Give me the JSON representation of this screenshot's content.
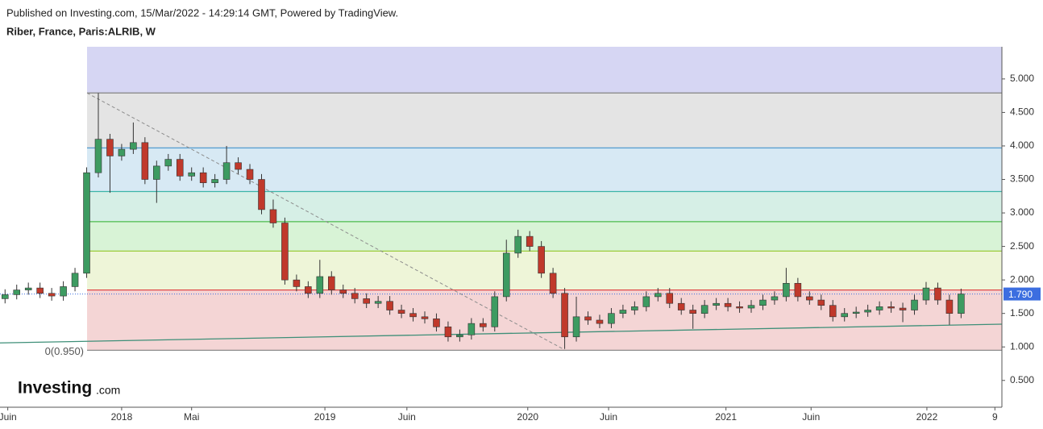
{
  "header": {
    "published": "Published on Investing.com, 15/Mar/2022 - 14:29:14 GMT, Powered by TradingView.",
    "symbol": "Riber, France, Paris:ALRIB, W"
  },
  "logo": {
    "name": "Investing",
    "suffix": ".com"
  },
  "chart_data": {
    "type": "candlestick",
    "x": [
      -30,
      -27,
      -24,
      -21,
      -18,
      -15,
      -12,
      -9,
      -6,
      -3,
      0,
      3,
      6,
      9,
      12,
      15,
      18,
      21,
      24,
      27,
      30,
      33,
      36,
      39,
      42,
      45,
      48,
      51,
      54,
      57,
      60,
      63,
      66,
      69,
      72,
      75,
      78,
      81,
      84,
      87,
      90,
      93,
      96,
      99,
      102,
      105,
      108,
      111,
      114,
      117,
      120,
      123,
      126,
      129,
      132,
      135,
      138,
      141,
      144,
      147,
      150,
      153,
      156,
      159,
      162,
      165,
      168,
      171,
      174,
      177,
      180,
      183,
      186,
      189,
      192,
      195,
      198,
      201,
      204,
      207,
      210,
      213,
      216
    ],
    "open": [
      1.72,
      1.78,
      1.85,
      1.88,
      1.8,
      1.76,
      1.9,
      2.1,
      3.6,
      4.1,
      3.85,
      3.95,
      4.05,
      3.5,
      3.7,
      3.8,
      3.55,
      3.6,
      3.45,
      3.5,
      3.75,
      3.65,
      3.5,
      3.05,
      2.85,
      2.0,
      1.9,
      1.8,
      2.05,
      1.85,
      1.8,
      1.72,
      1.65,
      1.68,
      1.55,
      1.5,
      1.45,
      1.42,
      1.3,
      1.15,
      1.18,
      1.35,
      1.3,
      1.75,
      2.4,
      2.65,
      2.5,
      2.1,
      1.8,
      1.15,
      1.45,
      1.4,
      1.35,
      1.5,
      1.55,
      1.6,
      1.75,
      1.8,
      1.65,
      1.55,
      1.5,
      1.62,
      1.65,
      1.6,
      1.58,
      1.62,
      1.7,
      1.75,
      1.95,
      1.75,
      1.7,
      1.62,
      1.45,
      1.5,
      1.52,
      1.55,
      1.6,
      1.58,
      1.55,
      1.7,
      1.88,
      1.7,
      1.5
    ],
    "high": [
      1.86,
      1.93,
      1.96,
      1.96,
      1.88,
      1.98,
      2.18,
      3.68,
      4.79,
      4.18,
      4.03,
      4.35,
      4.13,
      3.78,
      3.88,
      3.88,
      3.68,
      3.68,
      3.58,
      4.0,
      3.83,
      3.73,
      3.58,
      3.2,
      2.93,
      2.08,
      1.98,
      2.3,
      2.13,
      1.93,
      1.88,
      1.8,
      1.76,
      1.76,
      1.63,
      1.58,
      1.53,
      1.5,
      1.38,
      1.26,
      1.43,
      1.43,
      1.83,
      2.6,
      2.75,
      2.73,
      2.58,
      2.18,
      1.88,
      1.75,
      1.53,
      1.48,
      1.58,
      1.63,
      1.68,
      1.83,
      1.88,
      1.88,
      1.73,
      1.63,
      1.7,
      1.73,
      1.73,
      1.68,
      1.7,
      1.78,
      1.83,
      2.18,
      2.03,
      1.83,
      1.78,
      1.7,
      1.58,
      1.6,
      1.63,
      1.68,
      1.68,
      1.66,
      1.78,
      1.97,
      1.96,
      1.78,
      1.87
    ],
    "low": [
      1.65,
      1.71,
      1.78,
      1.73,
      1.69,
      1.69,
      1.83,
      2.03,
      3.53,
      3.3,
      3.78,
      3.88,
      3.43,
      3.15,
      3.63,
      3.48,
      3.48,
      3.38,
      3.38,
      3.43,
      3.58,
      3.43,
      2.98,
      2.78,
      1.93,
      1.83,
      1.73,
      1.73,
      1.78,
      1.73,
      1.65,
      1.58,
      1.58,
      1.48,
      1.43,
      1.38,
      1.35,
      1.23,
      1.08,
      1.08,
      1.11,
      1.23,
      1.23,
      1.68,
      2.33,
      2.43,
      2.03,
      1.73,
      0.97,
      1.08,
      1.33,
      1.28,
      1.28,
      1.43,
      1.48,
      1.53,
      1.68,
      1.58,
      1.48,
      1.27,
      1.43,
      1.55,
      1.53,
      1.51,
      1.51,
      1.55,
      1.63,
      1.68,
      1.68,
      1.63,
      1.55,
      1.38,
      1.38,
      1.43,
      1.45,
      1.48,
      1.51,
      1.37,
      1.48,
      1.63,
      1.63,
      1.33,
      1.43
    ],
    "close": [
      1.78,
      1.85,
      1.88,
      1.8,
      1.76,
      1.9,
      2.1,
      3.6,
      4.1,
      3.85,
      3.95,
      4.05,
      3.5,
      3.7,
      3.8,
      3.55,
      3.6,
      3.45,
      3.5,
      3.75,
      3.65,
      3.5,
      3.05,
      2.85,
      2.0,
      1.9,
      1.8,
      2.05,
      1.85,
      1.8,
      1.72,
      1.65,
      1.68,
      1.55,
      1.5,
      1.45,
      1.42,
      1.3,
      1.15,
      1.18,
      1.35,
      1.3,
      1.75,
      2.4,
      2.65,
      2.5,
      2.1,
      1.8,
      1.15,
      1.45,
      1.4,
      1.35,
      1.5,
      1.55,
      1.6,
      1.75,
      1.8,
      1.65,
      1.55,
      1.5,
      1.62,
      1.65,
      1.6,
      1.58,
      1.62,
      1.7,
      1.75,
      1.95,
      1.75,
      1.7,
      1.62,
      1.45,
      1.5,
      1.52,
      1.55,
      1.6,
      1.58,
      1.55,
      1.7,
      1.88,
      1.7,
      1.5,
      1.79
    ],
    "up_color": "#3d9b61",
    "down_color": "#c0392b",
    "xlim": [
      -31.3,
      226.5
    ],
    "xticks": [
      {
        "value": -29.3,
        "label": "Juin"
      },
      {
        "value": 0,
        "label": "2018"
      },
      {
        "value": 18,
        "label": "Mai"
      },
      {
        "value": 52.3,
        "label": "2019"
      },
      {
        "value": 73.4,
        "label": "Juin"
      },
      {
        "value": 104.5,
        "label": "2020"
      },
      {
        "value": 125.3,
        "label": "Juin"
      },
      {
        "value": 155.5,
        "label": "2021"
      },
      {
        "value": 177.4,
        "label": "Juin"
      },
      {
        "value": 207.2,
        "label": "2022"
      },
      {
        "value": 224.7,
        "label": "9"
      }
    ],
    "ylim": [
      0.1,
      5.48
    ],
    "yticks": [
      {
        "value": 0.5,
        "label": "0.500"
      },
      {
        "value": 1,
        "label": "1.000"
      },
      {
        "value": 1.5,
        "label": "1.500"
      },
      {
        "value": 2,
        "label": "2.000"
      },
      {
        "value": 2.5,
        "label": "2.500"
      },
      {
        "value": 3,
        "label": "3.000"
      },
      {
        "value": 3.5,
        "label": "3.500"
      },
      {
        "value": 4,
        "label": "4.000"
      },
      {
        "value": 4.5,
        "label": "4.500"
      },
      {
        "value": 5,
        "label": "5.000"
      }
    ],
    "fib_start": -8.9,
    "fib_levels": [
      {
        "value": 0.95,
        "label": "0(0.950)",
        "line": "#8c8c8c",
        "fill": "#f4d5d5"
      },
      {
        "value": 1.85,
        "line": "#e04848",
        "fill": "#eef5d8"
      },
      {
        "value": 2.43,
        "line": "#9ccc3c",
        "fill": "#d8f3d6"
      },
      {
        "value": 2.87,
        "line": "#4cbb4c",
        "fill": "#d6efe6"
      },
      {
        "value": 3.32,
        "line": "#3cb4a8",
        "fill": "#d7e9f4"
      },
      {
        "value": 3.97,
        "line": "#5a9fd0",
        "fill": "#e4e4e4"
      },
      {
        "value": 4.79,
        "line": "#8c8c8c",
        "fill": "#d6d6f3"
      }
    ],
    "trend_line": {
      "x": [
        -31.3,
        226.5
      ],
      "y": [
        1.06,
        1.34
      ],
      "color": "#3e8f78"
    },
    "diagonal": {
      "x": [
        -8.9,
        113.9
      ],
      "y": [
        4.79,
        0.96
      ],
      "color": "#8c8c8c"
    },
    "last_price": {
      "value": 1.79,
      "value_label": "1.790",
      "color": "#3c6ee0"
    }
  }
}
